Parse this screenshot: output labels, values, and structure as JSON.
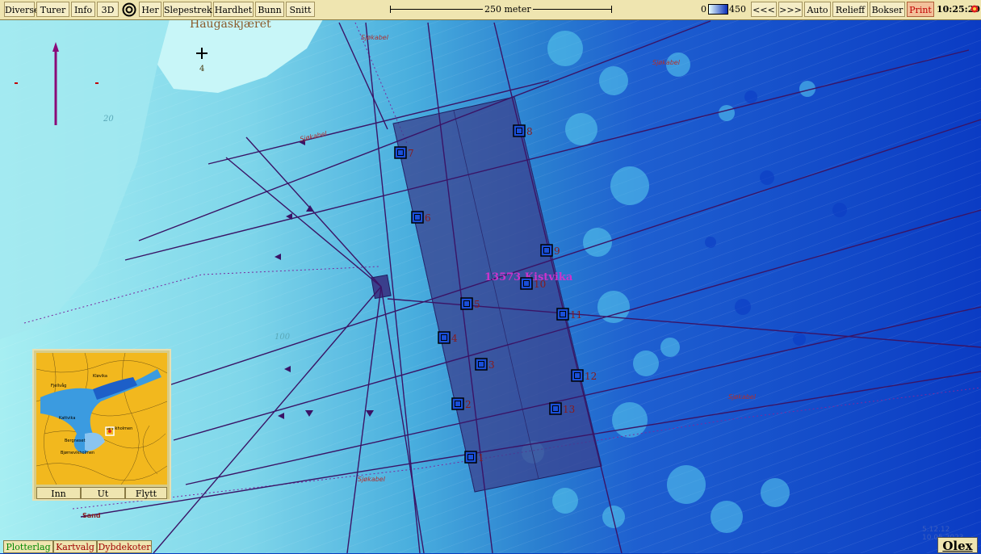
{
  "toolbar": {
    "buttons": [
      "Diverse",
      "Turer",
      "Info",
      "3D",
      "Her",
      "Slepestrek",
      "Hardhet",
      "Bunn",
      "Snitt"
    ],
    "scale_label": "250 meter",
    "depth_min": "0",
    "depth_max": "450",
    "right_buttons": [
      "<<<",
      ">>>",
      "Auto",
      "Relieff",
      "Bokser",
      "Print"
    ],
    "clock": "10:25:29"
  },
  "map": {
    "place_name": "Haugaskjæret",
    "mark_number": "4",
    "cable_labels": [
      "Sjøkabel",
      "Sjøkabel",
      "Sjøkabel",
      "Sjøkabel",
      "Sjøkabel"
    ],
    "contour_labels": [
      "20",
      "100"
    ],
    "site_label": "13573 Kistvika",
    "sand_label": "Sand",
    "cages": [
      "1",
      "2",
      "3",
      "4",
      "5",
      "6",
      "7",
      "8",
      "9",
      "10",
      "11",
      "12",
      "13"
    ],
    "date_stamp": "5.12.12  10.05.2023"
  },
  "inset": {
    "places": [
      "Fjellvåg",
      "Kløvika",
      "Kattvika",
      "Bergneset",
      "Bjørnevikholmen",
      "Karvikholmen"
    ],
    "buttons": [
      "Inn",
      "Ut",
      "Flytt"
    ]
  },
  "bottom_tabs": [
    "Plotterlag",
    "Kartvalg",
    "Dybdekoter"
  ],
  "brand": "Olex",
  "colors": {
    "toolbar_bg": "#efe5b0",
    "shallow_water": "#a8ecf0",
    "mid_water": "#3fa8d8",
    "deep_water": "#0a3fc0",
    "farm_area": "#3a3f8c",
    "vessel_line": "#3a1466",
    "site_label": "#cc33cc",
    "print_text": "#c00000",
    "tab_plotterlag": "#008800",
    "tab_kartvalg": "#a00000",
    "tab_dybdekoter": "#a00000"
  }
}
